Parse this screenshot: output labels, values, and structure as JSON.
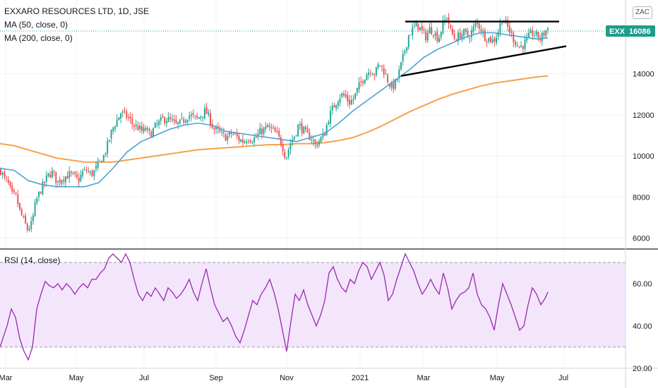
{
  "legend": {
    "title": "EXXARO RESOURCES LTD, 1D, JSE",
    "ma50": "MA (50, close, 0)",
    "ma200": "MA (200, close, 0)",
    "rsi": "RSI (14, close)"
  },
  "currency": "ZAC",
  "last_price": {
    "symbol": "EXX",
    "value": "16086"
  },
  "colors": {
    "up": "#26a69a",
    "down": "#ef5350",
    "ma50": "#4aa3d1",
    "ma200": "#f7a14b",
    "rsi": "#9c27b0",
    "rsi_band": "#f3e6fb",
    "price_badge": "#1e9c8c"
  },
  "chart_data": [
    {
      "type": "candlestick",
      "title": "EXXARO RESOURCES LTD, 1D, JSE",
      "x_ticks": [
        "Mar",
        "May",
        "Jul",
        "Sep",
        "Nov",
        "2021",
        "Mar",
        "May",
        "Jul"
      ],
      "y_ticks": [
        "6000",
        "8000",
        "10000",
        "12000",
        "14000"
      ],
      "ylim": [
        5500,
        17600
      ],
      "price_path": [
        [
          0,
          9300
        ],
        [
          5,
          8900
        ],
        [
          10,
          8700
        ],
        [
          16,
          8100
        ],
        [
          22,
          8000
        ],
        [
          27,
          7300
        ],
        [
          32,
          6900
        ],
        [
          38,
          6400
        ],
        [
          44,
          6700
        ],
        [
          50,
          7800
        ],
        [
          56,
          8300
        ],
        [
          62,
          8700
        ],
        [
          68,
          9100
        ],
        [
          74,
          9200
        ],
        [
          80,
          8700
        ],
        [
          86,
          8900
        ],
        [
          92,
          9000
        ],
        [
          98,
          9100
        ],
        [
          104,
          9000
        ],
        [
          110,
          8800
        ],
        [
          116,
          9200
        ],
        [
          122,
          9300
        ],
        [
          128,
          9100
        ],
        [
          134,
          9300
        ],
        [
          140,
          9700
        ],
        [
          146,
          10000
        ],
        [
          152,
          10600
        ],
        [
          158,
          11300
        ],
        [
          164,
          11700
        ],
        [
          170,
          12100
        ],
        [
          176,
          12000
        ],
        [
          182,
          11800
        ],
        [
          188,
          11500
        ],
        [
          194,
          11400
        ],
        [
          200,
          11200
        ],
        [
          206,
          11300
        ],
        [
          212,
          11000
        ],
        [
          218,
          11400
        ],
        [
          224,
          11600
        ],
        [
          230,
          11800
        ],
        [
          236,
          11800
        ],
        [
          242,
          11700
        ],
        [
          248,
          11500
        ],
        [
          254,
          11600
        ],
        [
          260,
          11800
        ],
        [
          266,
          12000
        ],
        [
          272,
          11900
        ],
        [
          278,
          11800
        ],
        [
          284,
          12000
        ],
        [
          290,
          12200
        ],
        [
          296,
          11800
        ],
        [
          302,
          11300
        ],
        [
          308,
          11200
        ],
        [
          314,
          11000
        ],
        [
          320,
          10900
        ],
        [
          326,
          11100
        ],
        [
          332,
          11000
        ],
        [
          338,
          10800
        ],
        [
          344,
          10700
        ],
        [
          350,
          10900
        ],
        [
          356,
          10800
        ],
        [
          362,
          10900
        ],
        [
          368,
          11200
        ],
        [
          374,
          11300
        ],
        [
          380,
          11400
        ],
        [
          386,
          11200
        ],
        [
          392,
          11000
        ],
        [
          398,
          10600
        ],
        [
          404,
          9900
        ],
        [
          410,
          10600
        ],
        [
          416,
          11000
        ],
        [
          422,
          11500
        ],
        [
          428,
          11300
        ],
        [
          434,
          11000
        ],
        [
          440,
          10900
        ],
        [
          446,
          10500
        ],
        [
          452,
          10800
        ],
        [
          458,
          11000
        ],
        [
          464,
          11800
        ],
        [
          470,
          12300
        ],
        [
          476,
          12700
        ],
        [
          482,
          13000
        ],
        [
          488,
          12900
        ],
        [
          494,
          12600
        ],
        [
          500,
          12800
        ],
        [
          506,
          13300
        ],
        [
          512,
          13700
        ],
        [
          518,
          14000
        ],
        [
          524,
          14200
        ],
        [
          530,
          14000
        ],
        [
          536,
          14500
        ],
        [
          542,
          14200
        ],
        [
          548,
          13700
        ],
        [
          554,
          13300
        ],
        [
          560,
          13600
        ],
        [
          566,
          14300
        ],
        [
          572,
          15100
        ],
        [
          578,
          15900
        ],
        [
          584,
          16200
        ],
        [
          590,
          16400
        ],
        [
          596,
          16100
        ],
        [
          602,
          15800
        ],
        [
          608,
          16200
        ],
        [
          614,
          16000
        ],
        [
          620,
          15700
        ],
        [
          626,
          16400
        ],
        [
          632,
          16800
        ],
        [
          638,
          16000
        ],
        [
          644,
          15700
        ],
        [
          650,
          15900
        ],
        [
          656,
          16000
        ],
        [
          662,
          15800
        ],
        [
          668,
          16100
        ],
        [
          674,
          16500
        ],
        [
          680,
          16200
        ],
        [
          686,
          15800
        ],
        [
          692,
          15700
        ],
        [
          698,
          15600
        ],
        [
          704,
          16000
        ],
        [
          710,
          16700
        ],
        [
          716,
          16400
        ],
        [
          722,
          16000
        ],
        [
          728,
          15600
        ],
        [
          734,
          15300
        ],
        [
          740,
          15400
        ],
        [
          746,
          15700
        ],
        [
          752,
          16000
        ],
        [
          758,
          15900
        ],
        [
          764,
          15700
        ],
        [
          770,
          16000
        ],
        [
          776,
          16300
        ]
      ],
      "ma50_path": [
        [
          0,
          9400
        ],
        [
          20,
          9300
        ],
        [
          40,
          8800
        ],
        [
          60,
          8600
        ],
        [
          80,
          8500
        ],
        [
          100,
          8500
        ],
        [
          120,
          8500
        ],
        [
          140,
          8700
        ],
        [
          160,
          9400
        ],
        [
          180,
          10200
        ],
        [
          200,
          10700
        ],
        [
          220,
          11000
        ],
        [
          240,
          11300
        ],
        [
          260,
          11500
        ],
        [
          280,
          11600
        ],
        [
          300,
          11500
        ],
        [
          320,
          11200
        ],
        [
          340,
          11100
        ],
        [
          360,
          11000
        ],
        [
          380,
          10900
        ],
        [
          400,
          10800
        ],
        [
          420,
          10700
        ],
        [
          440,
          10900
        ],
        [
          460,
          11100
        ],
        [
          480,
          11600
        ],
        [
          500,
          12200
        ],
        [
          520,
          12700
        ],
        [
          540,
          13200
        ],
        [
          560,
          13700
        ],
        [
          580,
          14200
        ],
        [
          600,
          14800
        ],
        [
          620,
          15200
        ],
        [
          640,
          15500
        ],
        [
          660,
          15800
        ],
        [
          680,
          16000
        ],
        [
          700,
          16000
        ],
        [
          720,
          15900
        ],
        [
          740,
          15800
        ],
        [
          760,
          15700
        ],
        [
          776,
          15750
        ]
      ],
      "ma200_path": [
        [
          0,
          10600
        ],
        [
          20,
          10500
        ],
        [
          40,
          10300
        ],
        [
          60,
          10100
        ],
        [
          80,
          9900
        ],
        [
          100,
          9800
        ],
        [
          120,
          9700
        ],
        [
          140,
          9700
        ],
        [
          160,
          9700
        ],
        [
          180,
          9800
        ],
        [
          200,
          9900
        ],
        [
          220,
          10000
        ],
        [
          240,
          10100
        ],
        [
          260,
          10200
        ],
        [
          280,
          10300
        ],
        [
          300,
          10350
        ],
        [
          320,
          10400
        ],
        [
          340,
          10450
        ],
        [
          360,
          10500
        ],
        [
          380,
          10550
        ],
        [
          400,
          10550
        ],
        [
          420,
          10600
        ],
        [
          440,
          10600
        ],
        [
          460,
          10650
        ],
        [
          480,
          10750
        ],
        [
          500,
          10900
        ],
        [
          520,
          11150
        ],
        [
          540,
          11450
        ],
        [
          560,
          11800
        ],
        [
          580,
          12150
        ],
        [
          600,
          12450
        ],
        [
          620,
          12750
        ],
        [
          640,
          13000
        ],
        [
          660,
          13200
        ],
        [
          680,
          13400
        ],
        [
          700,
          13550
        ],
        [
          720,
          13650
        ],
        [
          740,
          13750
        ],
        [
          760,
          13850
        ],
        [
          776,
          13900
        ]
      ],
      "trendlines": [
        {
          "from": [
            574,
            16550
          ],
          "to": [
            792,
            16550
          ]
        },
        {
          "from": [
            568,
            13900
          ],
          "to": [
            802,
            15350
          ]
        }
      ],
      "last_value": 16086
    },
    {
      "type": "line",
      "title": "RSI (14, close)",
      "y_ticks": [
        "20.00",
        "40.00",
        "60.00"
      ],
      "ylim": [
        20,
        76
      ],
      "band": [
        30,
        70
      ],
      "path": [
        [
          0,
          30
        ],
        [
          10,
          40
        ],
        [
          16,
          48
        ],
        [
          22,
          44
        ],
        [
          28,
          34
        ],
        [
          34,
          28
        ],
        [
          40,
          24
        ],
        [
          46,
          30
        ],
        [
          52,
          48
        ],
        [
          58,
          55
        ],
        [
          64,
          61
        ],
        [
          70,
          59
        ],
        [
          76,
          58
        ],
        [
          82,
          60
        ],
        [
          88,
          57
        ],
        [
          94,
          60
        ],
        [
          100,
          58
        ],
        [
          106,
          55
        ],
        [
          112,
          58
        ],
        [
          118,
          60
        ],
        [
          124,
          58
        ],
        [
          130,
          62
        ],
        [
          136,
          62
        ],
        [
          142,
          65
        ],
        [
          148,
          67
        ],
        [
          154,
          72
        ],
        [
          160,
          74
        ],
        [
          166,
          72
        ],
        [
          172,
          70
        ],
        [
          178,
          74
        ],
        [
          184,
          70
        ],
        [
          190,
          62
        ],
        [
          196,
          55
        ],
        [
          202,
          52
        ],
        [
          208,
          56
        ],
        [
          214,
          54
        ],
        [
          220,
          58
        ],
        [
          226,
          55
        ],
        [
          232,
          52
        ],
        [
          238,
          58
        ],
        [
          244,
          56
        ],
        [
          250,
          53
        ],
        [
          256,
          55
        ],
        [
          262,
          58
        ],
        [
          268,
          62
        ],
        [
          274,
          56
        ],
        [
          280,
          52
        ],
        [
          286,
          60
        ],
        [
          292,
          67
        ],
        [
          298,
          58
        ],
        [
          304,
          50
        ],
        [
          310,
          46
        ],
        [
          316,
          42
        ],
        [
          322,
          44
        ],
        [
          328,
          40
        ],
        [
          334,
          35
        ],
        [
          340,
          32
        ],
        [
          346,
          38
        ],
        [
          352,
          45
        ],
        [
          358,
          52
        ],
        [
          364,
          50
        ],
        [
          370,
          55
        ],
        [
          376,
          58
        ],
        [
          382,
          62
        ],
        [
          388,
          56
        ],
        [
          394,
          48
        ],
        [
          400,
          38
        ],
        [
          406,
          28
        ],
        [
          412,
          42
        ],
        [
          418,
          55
        ],
        [
          424,
          52
        ],
        [
          430,
          57
        ],
        [
          436,
          50
        ],
        [
          442,
          45
        ],
        [
          448,
          40
        ],
        [
          454,
          45
        ],
        [
          460,
          52
        ],
        [
          466,
          65
        ],
        [
          472,
          68
        ],
        [
          478,
          62
        ],
        [
          484,
          58
        ],
        [
          490,
          56
        ],
        [
          496,
          62
        ],
        [
          502,
          60
        ],
        [
          508,
          66
        ],
        [
          514,
          70
        ],
        [
          520,
          68
        ],
        [
          526,
          62
        ],
        [
          532,
          66
        ],
        [
          538,
          70
        ],
        [
          544,
          64
        ],
        [
          550,
          52
        ],
        [
          556,
          55
        ],
        [
          562,
          62
        ],
        [
          568,
          68
        ],
        [
          574,
          74
        ],
        [
          580,
          70
        ],
        [
          586,
          66
        ],
        [
          592,
          60
        ],
        [
          598,
          55
        ],
        [
          604,
          58
        ],
        [
          610,
          62
        ],
        [
          616,
          58
        ],
        [
          622,
          55
        ],
        [
          628,
          65
        ],
        [
          634,
          58
        ],
        [
          640,
          48
        ],
        [
          646,
          52
        ],
        [
          652,
          55
        ],
        [
          658,
          56
        ],
        [
          664,
          58
        ],
        [
          670,
          65
        ],
        [
          676,
          55
        ],
        [
          682,
          50
        ],
        [
          688,
          48
        ],
        [
          694,
          44
        ],
        [
          700,
          38
        ],
        [
          706,
          50
        ],
        [
          712,
          60
        ],
        [
          718,
          55
        ],
        [
          724,
          50
        ],
        [
          730,
          44
        ],
        [
          736,
          38
        ],
        [
          742,
          40
        ],
        [
          748,
          50
        ],
        [
          754,
          58
        ],
        [
          760,
          55
        ],
        [
          766,
          50
        ],
        [
          772,
          53
        ],
        [
          776,
          56
        ]
      ]
    }
  ]
}
